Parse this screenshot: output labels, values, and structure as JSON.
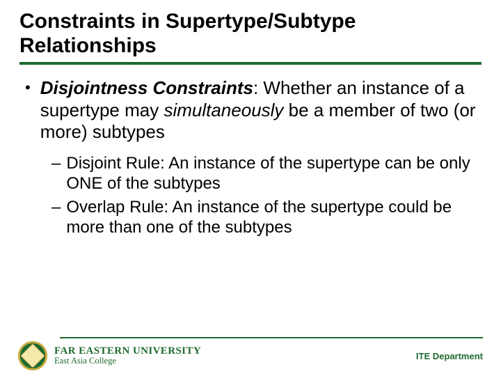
{
  "colors": {
    "accent": "#1e6b2f",
    "seal_border": "#c9a93e",
    "seal_bg": "#126b33",
    "text": "#000000",
    "background": "#ffffff"
  },
  "title": "Constraints in Supertype/Subtype Relationships",
  "main": {
    "lead_bi": "Disjointness Constraints",
    "lead_tail": ": Whether an instance of a supertype may ",
    "lead_it": "simultaneously",
    "lead_end": " be a member of two (or more) subtypes"
  },
  "subs": [
    "Disjoint Rule: An instance of the supertype can be only ONE of the subtypes",
    "Overlap Rule: An instance of the supertype could be more than one of the subtypes"
  ],
  "footer": {
    "university": "FAR EASTERN UNIVERSITY",
    "college": "East Asia College",
    "dept": "ITE Department"
  }
}
